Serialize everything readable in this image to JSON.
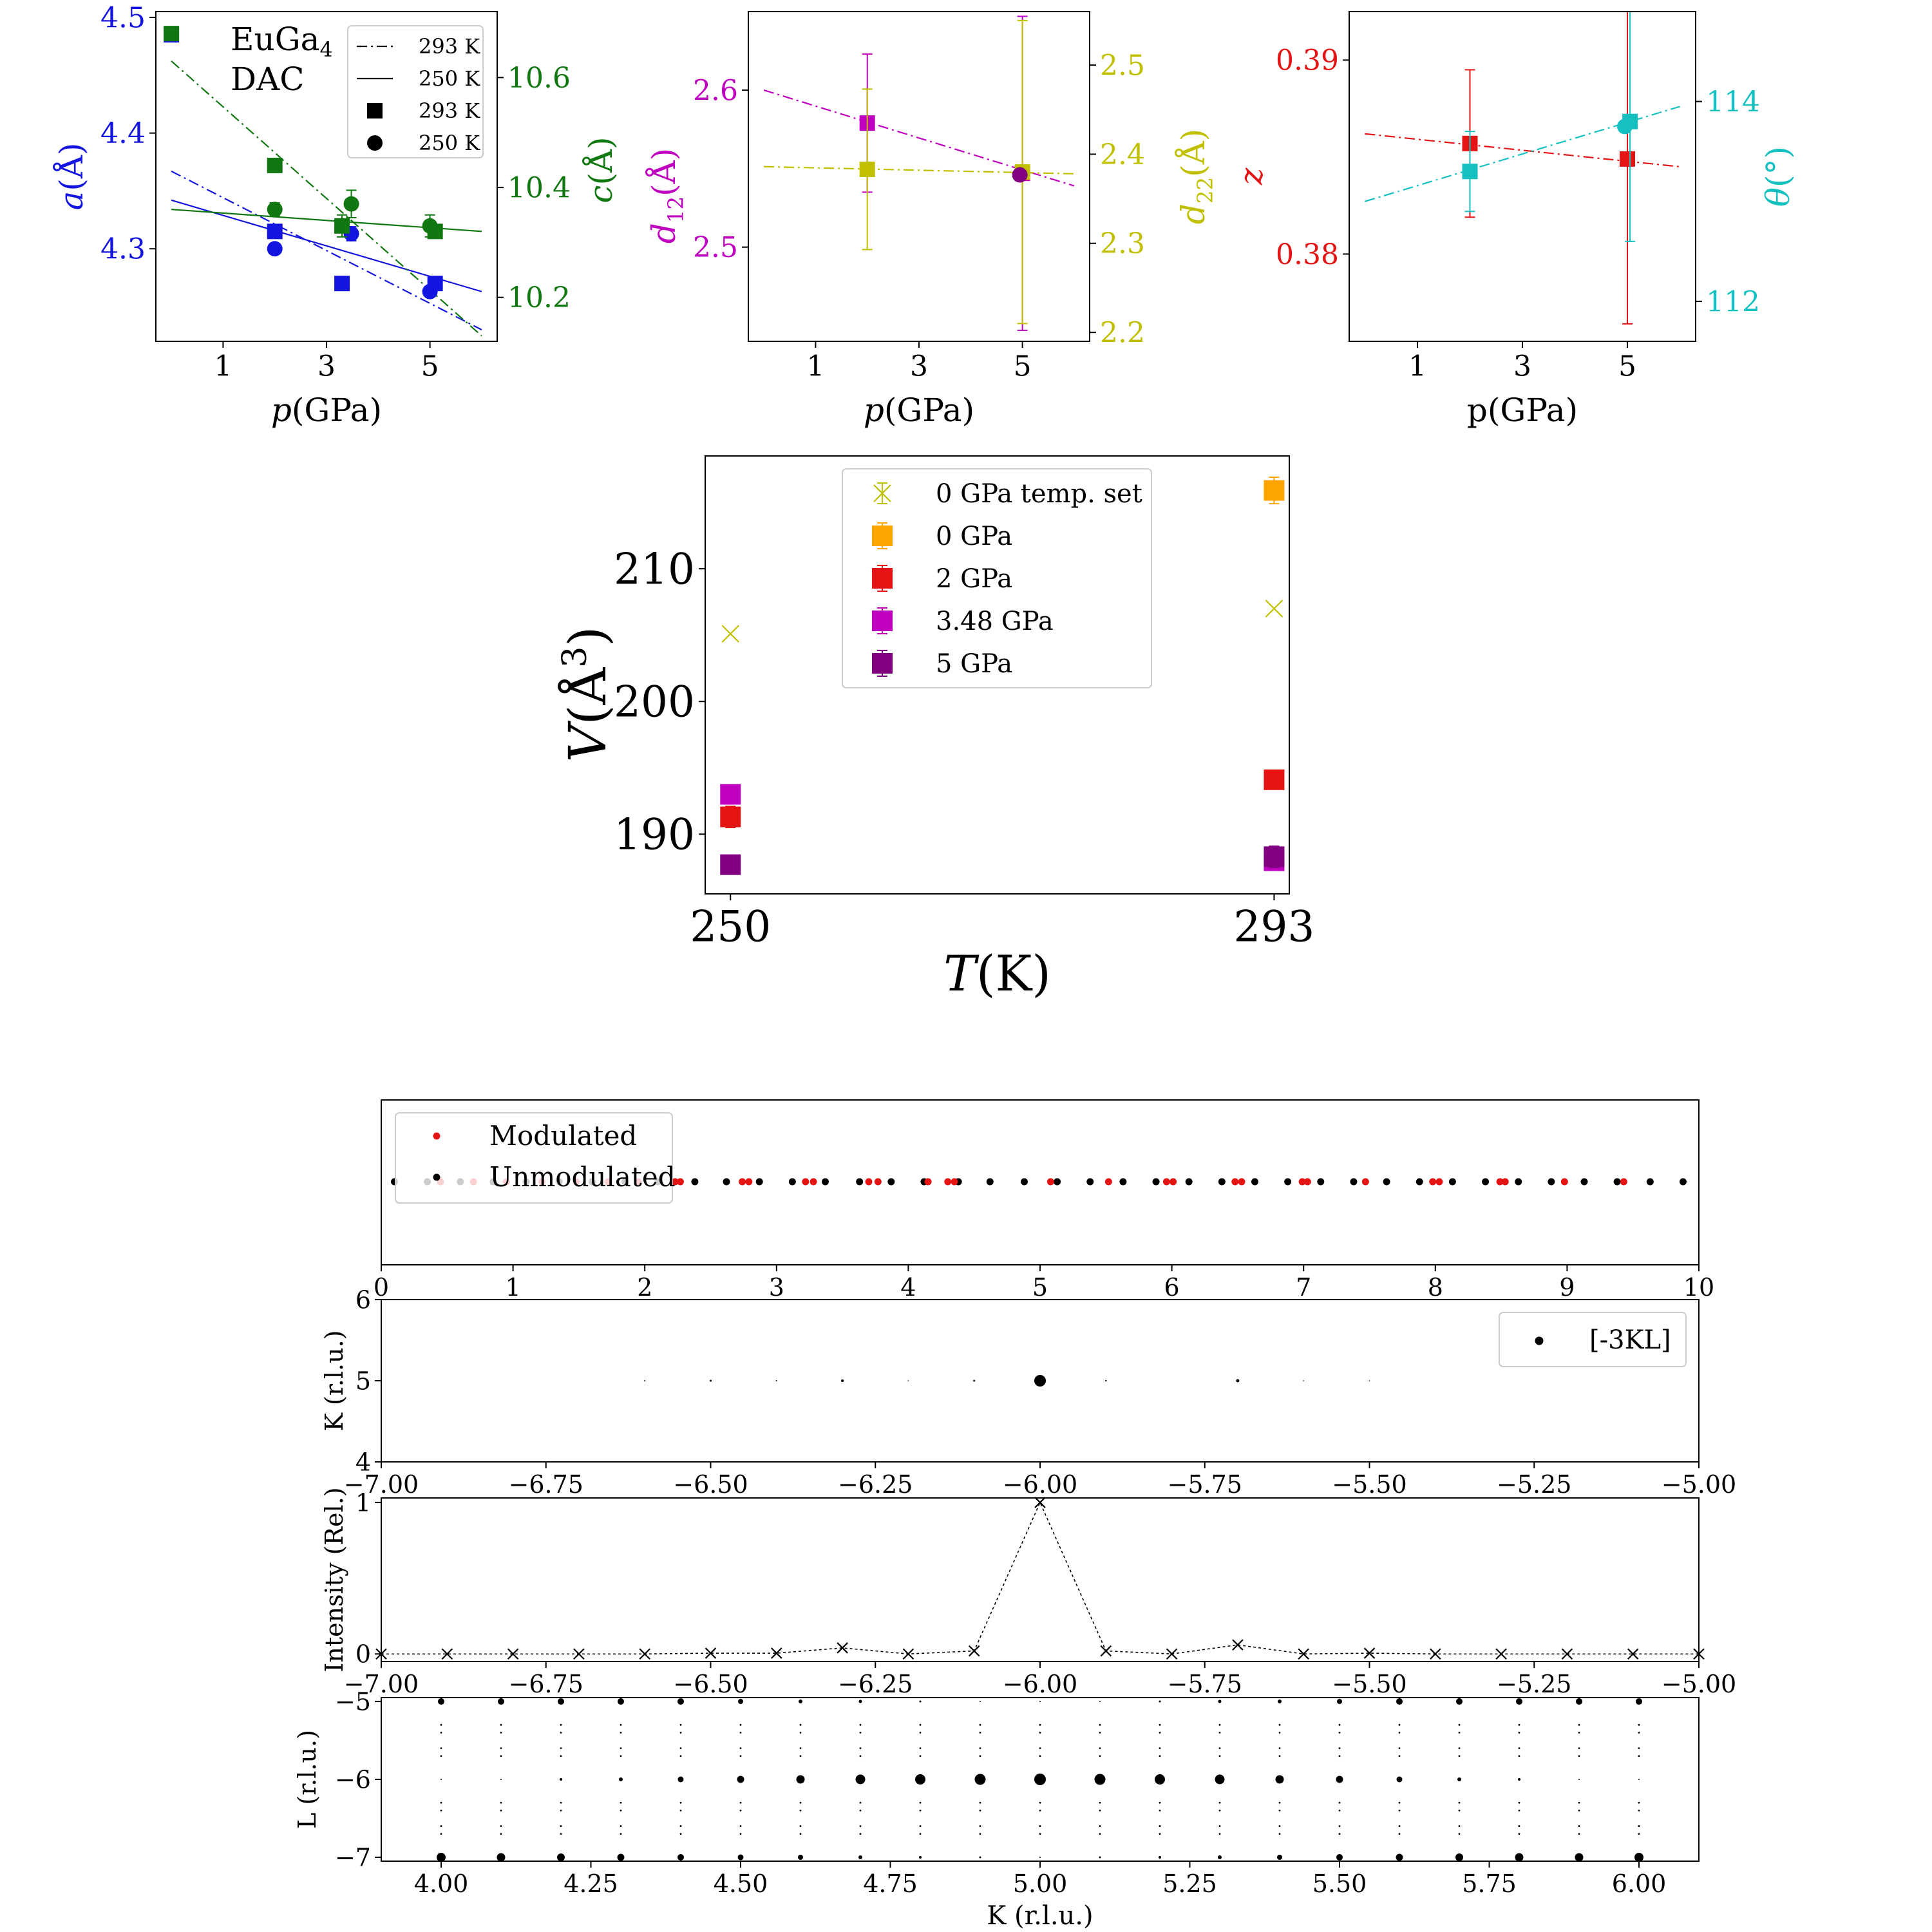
{
  "colors": {
    "blue": "#1414e0",
    "green": "#117711",
    "magenta": "#c000c0",
    "olive": "#c0c000",
    "red": "#e41414",
    "cyan": "#14c0c0",
    "orange": "#ffa500",
    "purple": "#800080",
    "black": "#000000",
    "axis": "#000000"
  },
  "chart_data": [
    {
      "id": "latt",
      "type": "scatter",
      "annotation": [
        "EuGa",
        "4",
        "DAC"
      ],
      "xlabel": {
        "pre": "p",
        "post": "(GPa)"
      },
      "ylabel_left": {
        "pre": "a",
        "post": "(Å)"
      },
      "ylabel_right": {
        "pre": "c",
        "post": "(Å)"
      },
      "xlim": [
        -0.3,
        6.3
      ],
      "ylim_left": [
        4.22,
        4.505
      ],
      "ylim_right": [
        10.12,
        10.72
      ],
      "x_ticks": [
        1,
        3,
        5
      ],
      "y_ticks_left": [
        4.3,
        4.4,
        4.5
      ],
      "y_ticks_right": [
        10.2,
        10.4,
        10.6
      ],
      "legend": [
        {
          "label": "293 K",
          "style": "dashdot"
        },
        {
          "label": "250 K",
          "style": "solid"
        },
        {
          "label": "293 K",
          "style": "square"
        },
        {
          "label": "250 K",
          "style": "circle"
        }
      ],
      "series": [
        {
          "axis": "left",
          "color": "blue",
          "marker": "square",
          "x": [
            0,
            2.0,
            3.3,
            5.1
          ],
          "y": [
            4.485,
            4.315,
            4.27,
            4.27
          ],
          "err": [
            0.006,
            0.004,
            0,
            0
          ]
        },
        {
          "axis": "left",
          "color": "blue",
          "marker": "circle",
          "x": [
            2.0,
            3.48,
            5.0
          ],
          "y": [
            4.3,
            4.313,
            4.263
          ],
          "err": [
            0,
            0.006,
            0.004
          ]
        },
        {
          "axis": "right",
          "color": "green",
          "marker": "square",
          "x": [
            0,
            2.0,
            3.3,
            5.1
          ],
          "y": [
            10.68,
            10.44,
            10.33,
            10.32
          ],
          "err": [
            0.008,
            0.004,
            0.02,
            0.012
          ]
        },
        {
          "axis": "right",
          "color": "green",
          "marker": "circle",
          "x": [
            2.0,
            3.48,
            5.0
          ],
          "y": [
            10.36,
            10.37,
            10.33
          ],
          "err": [
            0.012,
            0.025,
            0.02
          ]
        }
      ],
      "lines": [
        {
          "axis": "left",
          "color": "blue",
          "style": "dashdot",
          "x": [
            0,
            6
          ],
          "y": [
            4.367,
            4.23
          ]
        },
        {
          "axis": "left",
          "color": "blue",
          "style": "solid",
          "x": [
            0,
            6
          ],
          "y": [
            4.342,
            4.263
          ]
        },
        {
          "axis": "right",
          "color": "green",
          "style": "dashdot",
          "x": [
            0,
            6
          ],
          "y": [
            10.63,
            10.13
          ]
        },
        {
          "axis": "right",
          "color": "green",
          "style": "solid",
          "x": [
            0,
            6
          ],
          "y": [
            10.36,
            10.32
          ]
        }
      ]
    },
    {
      "id": "dist",
      "type": "scatter",
      "xlabel": {
        "pre": "p",
        "post": "(GPa)"
      },
      "ylabel_left": {
        "pre": "d",
        "sub": "12",
        "post": "(Å)"
      },
      "ylabel_right": {
        "pre": "d",
        "sub": "22",
        "post": "(Å)"
      },
      "xlim": [
        -0.3,
        6.3
      ],
      "ylim_left": [
        2.44,
        2.65
      ],
      "ylim_right": [
        2.19,
        2.56
      ],
      "x_ticks": [
        1,
        3,
        5
      ],
      "y_ticks_left": [
        2.5,
        2.6
      ],
      "y_ticks_right": [
        2.2,
        2.3,
        2.4,
        2.5
      ],
      "series": [
        {
          "axis": "left",
          "color": "magenta",
          "marker": "square",
          "x": [
            2.0,
            5.0
          ],
          "y": [
            2.579,
            2.547
          ],
          "err": [
            0.044,
            0.1
          ]
        },
        {
          "axis": "right",
          "color": "olive",
          "marker": "square",
          "x": [
            2.0,
            5.0
          ],
          "y": [
            2.383,
            2.38
          ],
          "err": [
            0.09,
            0.17
          ]
        },
        {
          "axis": "left",
          "color": "purple",
          "marker": "circle",
          "x": [
            4.95
          ],
          "y": [
            2.546
          ],
          "err": [
            0
          ]
        }
      ],
      "lines": [
        {
          "axis": "left",
          "color": "magenta",
          "style": "dashdot",
          "x": [
            0,
            6
          ],
          "y": [
            2.6,
            2.539
          ]
        },
        {
          "axis": "right",
          "color": "olive",
          "style": "dashdot",
          "x": [
            0,
            6
          ],
          "y": [
            2.386,
            2.378
          ]
        }
      ]
    },
    {
      "id": "pos",
      "type": "scatter",
      "xlabel": {
        "pre": "p",
        "post": "(GPa)",
        "upright": true
      },
      "ylabel_left": {
        "pre": "z",
        "post": ""
      },
      "ylabel_right": {
        "pre": "θ",
        "post": "(°)"
      },
      "xlim": [
        -0.3,
        6.3
      ],
      "ylim_left": [
        0.3755,
        0.3925
      ],
      "ylim_right": [
        111.6,
        114.9
      ],
      "x_ticks": [
        1,
        3,
        5
      ],
      "y_ticks_left": [
        0.38,
        0.39
      ],
      "y_ticks_right": [
        112,
        114
      ],
      "series": [
        {
          "axis": "left",
          "color": "red",
          "marker": "square",
          "x": [
            2.0,
            5.0
          ],
          "y": [
            0.3857,
            0.3849
          ],
          "err": [
            0.0038,
            0.0085
          ]
        },
        {
          "axis": "right",
          "color": "cyan",
          "marker": "square",
          "x": [
            2.0,
            5.05
          ],
          "y": [
            113.3,
            113.8
          ],
          "err": [
            0.4,
            1.2
          ]
        },
        {
          "axis": "right",
          "color": "cyan",
          "marker": "circle",
          "x": [
            4.95
          ],
          "y": [
            113.75
          ],
          "err": [
            0
          ]
        }
      ],
      "lines": [
        {
          "axis": "left",
          "color": "red",
          "style": "dashdot",
          "x": [
            0,
            6
          ],
          "y": [
            0.3862,
            0.3845
          ]
        },
        {
          "axis": "right",
          "color": "cyan",
          "style": "dashdot",
          "x": [
            0,
            6
          ],
          "y": [
            113.0,
            113.95
          ]
        }
      ]
    },
    {
      "id": "vol",
      "type": "scatter",
      "xlabel": {
        "pre": "T",
        "post": "(K)"
      },
      "ylabel": {
        "pre": "V",
        "post": "(Å",
        "sup": "3",
        "close": ")"
      },
      "xlim": [
        248,
        294.2
      ],
      "ylim": [
        185.5,
        218.5
      ],
      "x_ticks": [
        250,
        293
      ],
      "y_ticks": [
        190,
        200,
        210
      ],
      "legend": [
        {
          "label": "0 GPa temp. set",
          "color": "olive",
          "marker": "x"
        },
        {
          "label": "0 GPa",
          "color": "orange",
          "marker": "square"
        },
        {
          "label": "2 GPa",
          "color": "red",
          "marker": "square"
        },
        {
          "label": "3.48 GPa",
          "color": "magenta",
          "marker": "square"
        },
        {
          "label": "5 GPa",
          "color": "purple",
          "marker": "square"
        }
      ],
      "series": [
        {
          "name": "0 GPa temp. set",
          "color": "olive",
          "marker": "x",
          "x": [
            250,
            293
          ],
          "y": [
            205.1,
            207.0
          ]
        },
        {
          "name": "0 GPa",
          "color": "orange",
          "marker": "square",
          "x": [
            293
          ],
          "y": [
            215.9
          ],
          "err": [
            1.0
          ]
        },
        {
          "name": "2 GPa",
          "color": "red",
          "marker": "square",
          "x": [
            250,
            293
          ],
          "y": [
            191.3,
            194.1
          ],
          "err": [
            0.8,
            0
          ]
        },
        {
          "name": "3.48 GPa",
          "color": "magenta",
          "marker": "square",
          "x": [
            250,
            293
          ],
          "y": [
            193.0,
            188.0
          ],
          "err": [
            0.7,
            0
          ]
        },
        {
          "name": "5 GPa",
          "color": "purple",
          "marker": "square",
          "x": [
            250,
            293
          ],
          "y": [
            187.7,
            188.3
          ],
          "err": [
            0,
            0.8
          ]
        }
      ]
    },
    {
      "id": "strip",
      "type": "scatter",
      "xlim": [
        0,
        10
      ],
      "x_ticks": [
        0,
        1,
        2,
        3,
        4,
        5,
        6,
        7,
        8,
        9,
        10
      ],
      "legend": [
        {
          "label": "Modulated",
          "color": "red"
        },
        {
          "label": "Unmodulated",
          "color": "black"
        }
      ],
      "modulated_x": [
        0.45,
        0.7,
        0.95,
        1.22,
        1.48,
        1.72,
        1.95,
        2.23,
        2.27,
        2.74,
        2.79,
        3.22,
        3.28,
        3.7,
        3.77,
        4.15,
        4.3,
        4.35,
        5.08,
        5.52,
        5.96,
        6.01,
        6.48,
        6.53,
        6.99,
        7.03,
        7.47,
        7.98,
        8.03,
        8.49,
        8.53,
        8.98,
        9.43
      ],
      "unmodulated_x": [
        0.1,
        0.35,
        0.6,
        0.85,
        1.1,
        1.35,
        1.6,
        1.85,
        2.1,
        2.38,
        2.62,
        2.87,
        3.12,
        3.37,
        3.63,
        3.87,
        4.12,
        4.38,
        4.62,
        4.88,
        5.13,
        5.38,
        5.63,
        5.88,
        6.13,
        6.38,
        6.63,
        6.88,
        7.13,
        7.38,
        7.63,
        7.88,
        8.13,
        8.38,
        8.63,
        8.88,
        9.13,
        9.38,
        9.63,
        9.88
      ]
    },
    {
      "id": "kslice",
      "type": "scatter",
      "ylabel": "K (r.l.u.)",
      "xlim": [
        -7.0,
        -5.0
      ],
      "ylim": [
        4,
        6
      ],
      "x_ticks": [
        -7.0,
        -6.75,
        -6.5,
        -6.25,
        -6.0,
        -5.75,
        -5.5,
        -5.25,
        -5.0
      ],
      "x_tick_labels": [
        "−7.00",
        "−6.75",
        "−6.50",
        "−6.25",
        "−6.00",
        "−5.75",
        "−5.50",
        "−5.25",
        "−5.00"
      ],
      "y_ticks": [
        4,
        5,
        6
      ],
      "legend": [
        {
          "label": "[-3KL]",
          "color": "black"
        }
      ],
      "points": [
        {
          "x": -6.6,
          "y": 5,
          "r": 1
        },
        {
          "x": -6.5,
          "y": 5,
          "r": 1.5
        },
        {
          "x": -6.4,
          "y": 5,
          "r": 1
        },
        {
          "x": -6.3,
          "y": 5,
          "r": 2
        },
        {
          "x": -6.2,
          "y": 5,
          "r": 0.8
        },
        {
          "x": -6.1,
          "y": 5,
          "r": 1.5
        },
        {
          "x": -6.0,
          "y": 5,
          "r": 9
        },
        {
          "x": -5.9,
          "y": 5,
          "r": 1.2
        },
        {
          "x": -5.7,
          "y": 5,
          "r": 2.5
        },
        {
          "x": -5.6,
          "y": 5,
          "r": 0.8
        },
        {
          "x": -5.5,
          "y": 5,
          "r": 0.8
        }
      ]
    },
    {
      "id": "intensity",
      "type": "line",
      "ylabel": "Intensity (Rel.)",
      "xlim": [
        -7.0,
        -5.0
      ],
      "ylim": [
        -0.05,
        1.03
      ],
      "x_ticks": [
        -7.0,
        -6.75,
        -6.5,
        -6.25,
        -6.0,
        -5.75,
        -5.5,
        -5.25,
        -5.0
      ],
      "x_tick_labels": [
        "−7.00",
        "−6.75",
        "−6.50",
        "−6.25",
        "−6.00",
        "−5.75",
        "−5.50",
        "−5.25",
        "−5.00"
      ],
      "y_ticks": [
        0,
        1
      ],
      "x": [
        -7.0,
        -6.9,
        -6.8,
        -6.7,
        -6.6,
        -6.5,
        -6.4,
        -6.3,
        -6.2,
        -6.1,
        -6.0,
        -5.9,
        -5.8,
        -5.7,
        -5.6,
        -5.5,
        -5.4,
        -5.3,
        -5.2,
        -5.1,
        -5.0
      ],
      "y": [
        0.0,
        0.0,
        0.0,
        0.0,
        0.0,
        0.005,
        0.005,
        0.04,
        0.0,
        0.02,
        1.0,
        0.02,
        0.0,
        0.06,
        0.0,
        0.005,
        0.0,
        0.0,
        0.0,
        0.0,
        0.0
      ]
    },
    {
      "id": "kl",
      "type": "scatter",
      "xlabel": "K (r.l.u.)",
      "ylabel": "L (r.l.u.)",
      "xlim": [
        3.9,
        6.1
      ],
      "ylim": [
        -7.05,
        -4.95
      ],
      "x_ticks": [
        4.0,
        4.25,
        4.5,
        4.75,
        5.0,
        5.25,
        5.5,
        5.75,
        6.0
      ],
      "x_tick_labels": [
        "4.00",
        "4.25",
        "4.50",
        "4.75",
        "5.00",
        "5.25",
        "5.50",
        "5.75",
        "6.00"
      ],
      "y_ticks": [
        -5,
        -6,
        -7
      ],
      "y_tick_labels": [
        "−5",
        "−6",
        "−7"
      ],
      "k_columns": [
        4.0,
        4.1,
        4.2,
        4.3,
        4.4,
        4.5,
        4.6,
        4.7,
        4.8,
        4.9,
        5.0,
        5.1,
        5.2,
        5.3,
        5.4,
        5.5,
        5.6,
        5.7,
        5.8,
        5.9,
        6.0
      ],
      "r_top": [
        5,
        5,
        5,
        5,
        5,
        4,
        3,
        2.5,
        1.5,
        1,
        1,
        1,
        1.5,
        2.5,
        3,
        4,
        5,
        5,
        5,
        5,
        5
      ],
      "r_mid": [
        1,
        1,
        2,
        3,
        4.5,
        5.5,
        6.5,
        7.5,
        8,
        8.5,
        9,
        8.5,
        8,
        7.5,
        6.5,
        5.5,
        4.5,
        3,
        2,
        1,
        1
      ],
      "r_bot": [
        7,
        6.5,
        6,
        5.5,
        5,
        4.5,
        4,
        3,
        2,
        1.5,
        1,
        1.5,
        2,
        3,
        4,
        5,
        5.5,
        6,
        6.5,
        6.5,
        7
      ],
      "satellite_offsets": [
        0.3,
        0.4,
        0.6,
        0.7
      ]
    }
  ]
}
